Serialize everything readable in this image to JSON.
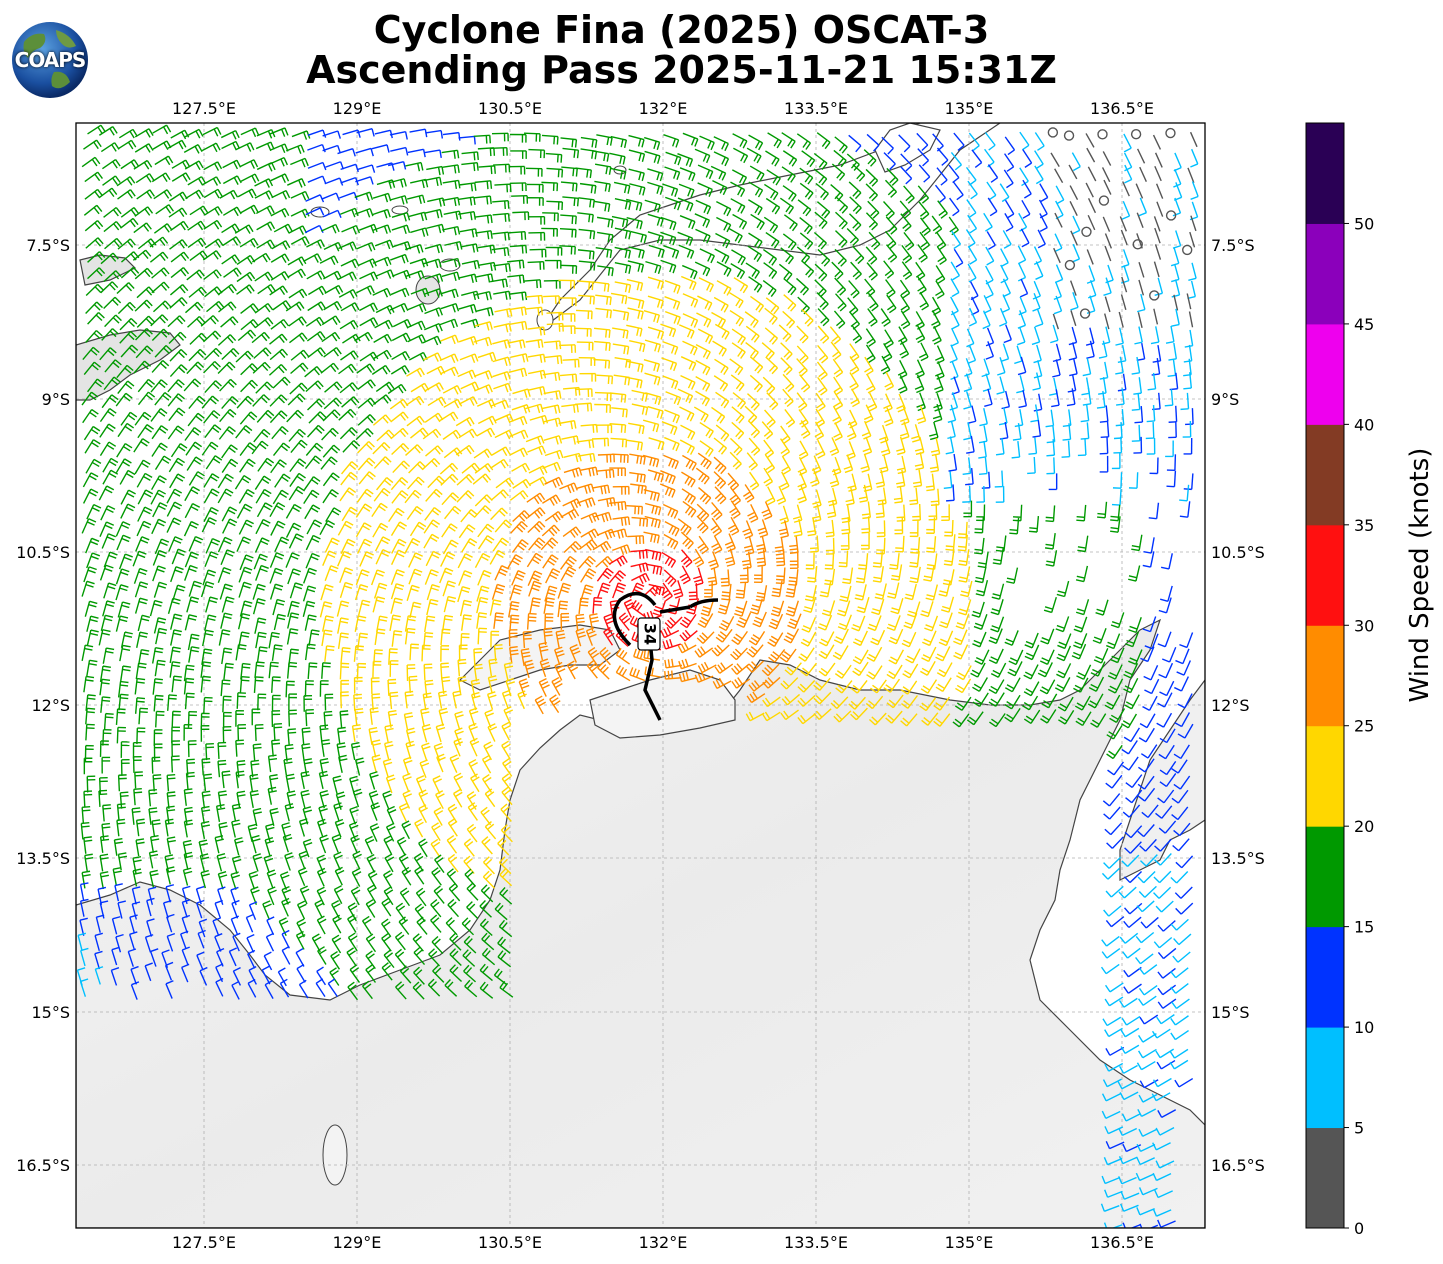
{
  "title": {
    "line1": "Cyclone Fina (2025) OSCAT-3",
    "line2": "Ascending Pass 2025-11-21 15:31Z"
  },
  "logo": {
    "text": "COAPS"
  },
  "map": {
    "lon_ticks": [
      "127.5°E",
      "129°E",
      "130.5°E",
      "132°E",
      "133.5°E",
      "135°E",
      "136.5°E"
    ],
    "lat_ticks": [
      "7.5°S",
      "9°S",
      "10.5°S",
      "12°S",
      "13.5°S",
      "15°S",
      "16.5°S"
    ],
    "wind_radius_label": "34"
  },
  "colorbar": {
    "label": "Wind Speed (knots)",
    "ticks": [
      "0",
      "5",
      "10",
      "15",
      "20",
      "25",
      "30",
      "35",
      "40",
      "45",
      "50"
    ],
    "colors": [
      "#555555",
      "#00bfff",
      "#0033ff",
      "#009900",
      "#ffd700",
      "#ff8c00",
      "#ff1010",
      "#833b24",
      "#ee00ee",
      "#8b00bb",
      "#2a0055"
    ]
  }
}
